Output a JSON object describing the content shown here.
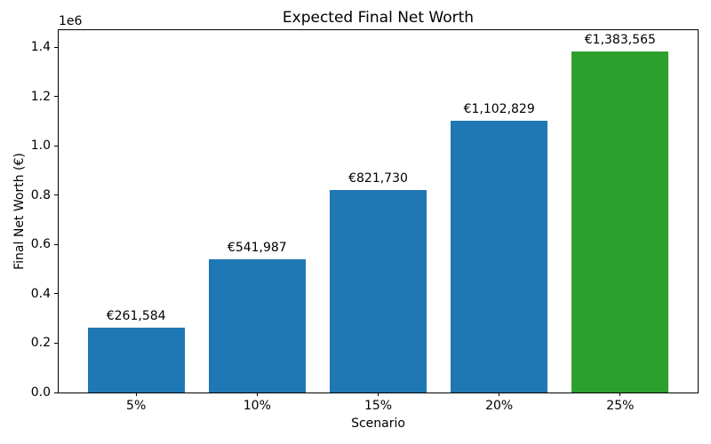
{
  "chart_data": {
    "type": "bar",
    "title": "Expected Final Net Worth",
    "xlabel": "Scenario",
    "ylabel": "Final Net Worth (€)",
    "y_offset_label": "1e6",
    "categories": [
      "5%",
      "10%",
      "15%",
      "20%",
      "25%"
    ],
    "values": [
      261584,
      541987,
      821730,
      1102829,
      1383565
    ],
    "bar_labels": [
      "€261,584",
      "€541,987",
      "€821,730",
      "€1,102,829",
      "€1,383,565"
    ],
    "bar_colors": [
      "#1f77b4",
      "#1f77b4",
      "#1f77b4",
      "#1f77b4",
      "#2ca02c"
    ],
    "colors": {
      "blue": "#1f77b4",
      "green": "#2ca02c",
      "spine": "#000000",
      "background": "#ffffff"
    },
    "ylim": [
      0,
      1470000
    ],
    "yticks": [
      0,
      200000,
      400000,
      600000,
      800000,
      1000000,
      1200000,
      1400000
    ],
    "ytick_labels": [
      "0.0",
      "0.2",
      "0.4",
      "0.6",
      "0.8",
      "1.0",
      "1.2",
      "1.4"
    ],
    "grid": false,
    "legend": "none"
  }
}
